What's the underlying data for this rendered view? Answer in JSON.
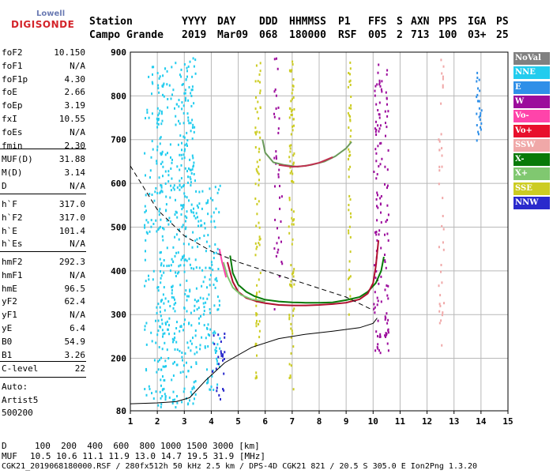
{
  "logo": {
    "top": "Lowell",
    "bottom": "DIGISONDE"
  },
  "header": {
    "labels": [
      "Station",
      "YYYY",
      "DAY",
      "DDD",
      "HHMMSS",
      "P1",
      "FFS",
      "S",
      "AXN",
      "PPS",
      "IGA",
      "PS"
    ],
    "values": [
      "Campo Grande",
      "2019",
      "Mar09",
      "068",
      "180000",
      "RSF",
      "005",
      "2",
      "713",
      "100",
      "03+",
      "25"
    ]
  },
  "params": [
    {
      "name": "foF2",
      "value": "10.150"
    },
    {
      "name": "foF1",
      "value": "N/A"
    },
    {
      "name": "foF1p",
      "value": "4.30"
    },
    {
      "name": "foE",
      "value": "2.66"
    },
    {
      "name": "foEp",
      "value": "3.19"
    },
    {
      "name": "fxI",
      "value": "10.55"
    },
    {
      "name": "foEs",
      "value": "N/A"
    },
    {
      "name": "fmin",
      "value": "2.30"
    },
    {
      "name": "MUF(D)",
      "value": "31.88"
    },
    {
      "name": "M(D)",
      "value": "3.14"
    },
    {
      "name": "D",
      "value": "N/A"
    },
    {
      "name": "h`F",
      "value": "317.0"
    },
    {
      "name": "h`F2",
      "value": "317.0"
    },
    {
      "name": "h`E",
      "value": "101.4"
    },
    {
      "name": "h`Es",
      "value": "N/A"
    },
    {
      "name": "hmF2",
      "value": "292.3"
    },
    {
      "name": "hmF1",
      "value": "N/A"
    },
    {
      "name": "hmE",
      "value": "96.5"
    },
    {
      "name": "yF2",
      "value": "62.4"
    },
    {
      "name": "yF1",
      "value": "N/A"
    },
    {
      "name": "yE",
      "value": "6.4"
    },
    {
      "name": "B0",
      "value": "54.9"
    },
    {
      "name": "B1",
      "value": "3.26"
    },
    {
      "name": "C-level",
      "value": "22"
    }
  ],
  "auto": [
    "Auto:",
    "Artist5",
    "500200"
  ],
  "legend": [
    {
      "label": "NoVal",
      "color": "#808080"
    },
    {
      "label": "NNE",
      "color": "#22ccee"
    },
    {
      "label": "E",
      "color": "#2f8fe8"
    },
    {
      "label": "W",
      "color": "#9c0c9c"
    },
    {
      "label": "Vo-",
      "color": "#ff44aa"
    },
    {
      "label": "Vo+",
      "color": "#e8102c"
    },
    {
      "label": "SSW",
      "color": "#f0a8a8"
    },
    {
      "label": "X-",
      "color": "#087a08"
    },
    {
      "label": "X+",
      "color": "#80c870"
    },
    {
      "label": "SSE",
      "color": "#cccc22"
    },
    {
      "label": "NNW",
      "color": "#2a2acc"
    }
  ],
  "footer": {
    "d_label": "D",
    "d_values": "100  200  400  600  800 1000 1500 3000 [km]",
    "muf_label": "MUF",
    "muf_values": "10.5 10.6 11.1 11.9 13.0 14.7 19.5 31.9 [MHz]",
    "info": "CGK21_2019068180000.RSF / 280fx512h 50 kHz 2.5 km / DPS-4D CGK21 821 / 20.5 S 305.0 E Ion2Png 1.3.20"
  },
  "chart_data": {
    "type": "scatter",
    "title": "",
    "xlabel": "",
    "ylabel": "",
    "xlim": [
      1,
      15
    ],
    "ylim": [
      80,
      900
    ],
    "x_ticks": [
      1,
      2,
      3,
      4,
      5,
      6,
      7,
      8,
      9,
      10,
      11,
      12,
      13,
      14,
      15
    ],
    "y_ticks": [
      80,
      200,
      300,
      400,
      500,
      600,
      700,
      800,
      900
    ],
    "grid": true,
    "legend_position": "right",
    "series": [
      {
        "name": "X-",
        "color": "#087a08",
        "width": 2,
        "x": [
          4.7,
          4.8,
          5.0,
          5.3,
          5.6,
          6.0,
          6.5,
          7.0,
          7.5,
          8.0,
          8.5,
          9.0,
          9.5,
          9.8,
          10.1,
          10.3,
          10.4
        ],
        "y": [
          435,
          395,
          368,
          352,
          342,
          334,
          330,
          328,
          327,
          327,
          328,
          333,
          340,
          352,
          372,
          400,
          432
        ]
      },
      {
        "name": "Vo+",
        "color": "#b01030",
        "width": 2,
        "x": [
          4.6,
          4.8,
          5.0,
          5.3,
          5.7,
          6.0,
          6.5,
          7.0,
          7.5,
          8.0,
          8.5,
          9.0,
          9.5,
          9.8,
          10.0,
          10.1,
          10.2
        ],
        "y": [
          420,
          375,
          352,
          338,
          330,
          326,
          322,
          321,
          321,
          322,
          324,
          327,
          335,
          348,
          372,
          410,
          470
        ]
      },
      {
        "name": "X+",
        "color": "#80c870",
        "width": 2,
        "x": [
          4.45,
          4.6,
          4.8,
          5.1,
          5.5,
          6.0
        ],
        "y": [
          420,
          388,
          362,
          345,
          335,
          330
        ]
      },
      {
        "name": "Vo-",
        "color": "#ff44aa",
        "width": 2,
        "x": [
          4.3,
          4.4,
          4.55
        ],
        "y": [
          450,
          420,
          385
        ]
      },
      {
        "name": "trace2",
        "color": "#6a9a5a",
        "width": 2,
        "x": [
          5.9,
          6.0,
          6.3,
          6.7,
          7.2,
          7.7,
          8.2,
          8.6,
          9.0,
          9.2
        ],
        "y": [
          700,
          670,
          648,
          642,
          638,
          642,
          650,
          662,
          680,
          695
        ]
      },
      {
        "name": "trace2b",
        "color": "#c03050",
        "width": 2,
        "x": [
          6.5,
          7.0,
          7.5,
          8.0,
          8.5
        ],
        "y": [
          642,
          638,
          640,
          647,
          660
        ]
      },
      {
        "name": "MUF",
        "color": "#000000",
        "width": 1,
        "dash": "6,4",
        "x": [
          1,
          2,
          3,
          4,
          5,
          6,
          7,
          8,
          9,
          10
        ],
        "y": [
          640,
          540,
          480,
          445,
          420,
          400,
          380,
          360,
          340,
          310
        ]
      },
      {
        "name": "Profile",
        "color": "#000000",
        "width": 1,
        "x": [
          1.0,
          2.0,
          2.7,
          3.2,
          3.8,
          4.5,
          5.5,
          6.5,
          7.5,
          8.5,
          9.5,
          10.0,
          10.15
        ],
        "y": [
          96,
          98,
          101,
          110,
          150,
          190,
          225,
          245,
          255,
          262,
          270,
          280,
          292
        ]
      }
    ]
  }
}
